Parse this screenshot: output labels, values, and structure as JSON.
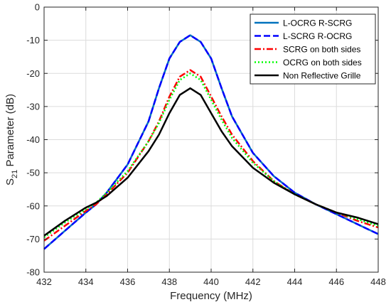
{
  "chart_data": {
    "type": "line",
    "title": "",
    "xlabel": "Frequency (MHz)",
    "ylabel_main": "S",
    "ylabel_sub": "21",
    "ylabel_rest": " Parameter (dB)",
    "xlim": [
      432,
      448
    ],
    "ylim": [
      -80,
      0
    ],
    "xticks": [
      432,
      434,
      436,
      438,
      440,
      442,
      444,
      446,
      448
    ],
    "yticks": [
      0,
      -10,
      -20,
      -30,
      -40,
      -50,
      -60,
      -70,
      -80
    ],
    "grid": true,
    "legend_position": "top-right",
    "series": [
      {
        "name": "L-OCRG R-SCRG",
        "color": "#0072BD",
        "dash": "solid",
        "x": [
          432,
          433,
          434,
          434.5,
          435,
          436,
          437,
          437.5,
          438,
          438.5,
          439,
          439.5,
          440,
          440.5,
          441,
          442,
          443,
          444,
          445,
          446,
          447,
          448
        ],
        "y": [
          -73,
          -67.5,
          -62,
          -59.5,
          -56,
          -47.5,
          -34.5,
          -24.5,
          -15.5,
          -10.5,
          -8.5,
          -10.5,
          -15.5,
          -24.5,
          -33,
          -44,
          -51,
          -56,
          -59.5,
          -62.5,
          -65.5,
          -68.5
        ]
      },
      {
        "name": "L-SCRG R-OCRG",
        "color": "#0000FF",
        "dash": "dashed",
        "x": [
          432,
          433,
          434,
          434.5,
          435,
          436,
          437,
          437.5,
          438,
          438.5,
          439,
          439.5,
          440,
          440.5,
          441,
          442,
          443,
          444,
          445,
          446,
          447,
          448
        ],
        "y": [
          -73,
          -67.5,
          -62,
          -59.5,
          -56,
          -47.5,
          -34.5,
          -24.5,
          -15.5,
          -10.5,
          -8.5,
          -10.5,
          -15.5,
          -24.5,
          -33,
          -44,
          -51,
          -56,
          -59.5,
          -62.5,
          -65.5,
          -68.5
        ]
      },
      {
        "name": "SCRG on both sides",
        "color": "#FF0000",
        "dash": "dashdot",
        "x": [
          432,
          433,
          434,
          434.5,
          435,
          436,
          437,
          437.5,
          438,
          438.5,
          439,
          439.5,
          440,
          440.5,
          441,
          442,
          443,
          444,
          445,
          446,
          447,
          448
        ],
        "y": [
          -70.5,
          -66,
          -61.5,
          -59.5,
          -56.5,
          -50,
          -40.5,
          -34.5,
          -27,
          -21,
          -19,
          -21,
          -27,
          -33,
          -38.5,
          -46.5,
          -52.5,
          -56.5,
          -59.5,
          -62,
          -64.5,
          -66.5
        ]
      },
      {
        "name": "OCRG on both sides",
        "color": "#00FF00",
        "dash": "dotted",
        "x": [
          432,
          433,
          434,
          434.5,
          435,
          436,
          437,
          437.5,
          438,
          438.5,
          439,
          439.5,
          440,
          440.5,
          441,
          442,
          443,
          444,
          445,
          446,
          447,
          448
        ],
        "y": [
          -69.5,
          -65,
          -61,
          -59,
          -56,
          -49.5,
          -40.5,
          -35,
          -28,
          -22,
          -20,
          -22,
          -28,
          -34,
          -39.5,
          -47,
          -52.5,
          -56.5,
          -59.5,
          -62,
          -64,
          -66
        ]
      },
      {
        "name": "Non Reflective Grille",
        "color": "#000000",
        "dash": "solid",
        "x": [
          432,
          433,
          434,
          434.5,
          435,
          436,
          437,
          437.5,
          438,
          438.5,
          439,
          439.5,
          440,
          440.5,
          441,
          442,
          443,
          444,
          445,
          446,
          447,
          448
        ],
        "y": [
          -69,
          -64.5,
          -60.5,
          -59,
          -57,
          -51.5,
          -43.5,
          -38.5,
          -32,
          -26.5,
          -24.5,
          -26.5,
          -32,
          -37.5,
          -42,
          -48.5,
          -53,
          -56.5,
          -59.5,
          -62,
          -63.5,
          -65.5
        ]
      }
    ]
  }
}
